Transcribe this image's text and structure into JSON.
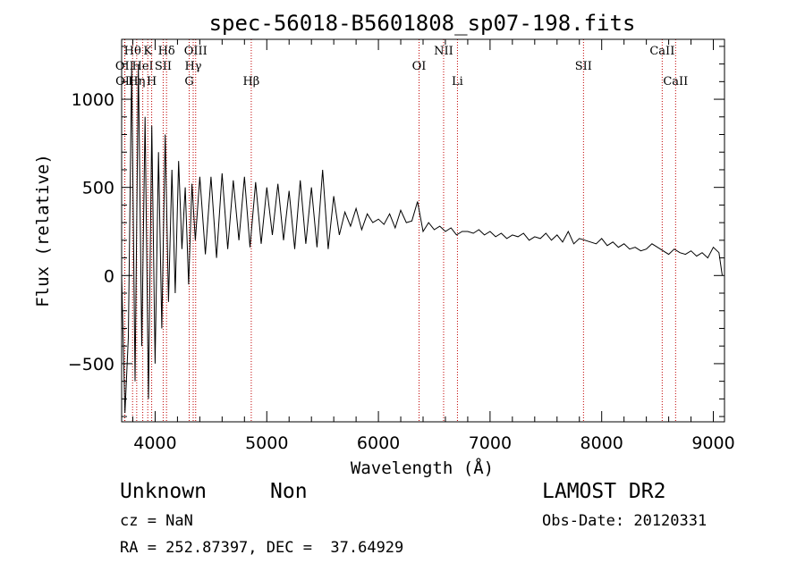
{
  "info": {
    "class": "Unknown",
    "subclass": "Non",
    "survey": "LAMOST DR2",
    "cz": "cz = NaN",
    "obs_date": "Obs-Date: 20120331",
    "coords": "RA = 252.87397, DEC =  37.64929"
  },
  "chart_data": {
    "type": "line",
    "title": "spec-56018-B5601808_sp07-198.fits",
    "xlabel": "Wavelength (Å)",
    "ylabel": "Flux (relative)",
    "xlim": [
      3700,
      9100
    ],
    "ylim": [
      -830,
      1340
    ],
    "xticks": [
      4000,
      5000,
      6000,
      7000,
      8000,
      9000
    ],
    "yticks": [
      -500,
      0,
      500,
      1000
    ],
    "grid": false,
    "line_color": "#000000",
    "marker_color": "#c00000",
    "spectral_lines": [
      {
        "label": "OII",
        "wavelength": 3727,
        "row": 2
      },
      {
        "label": "OII",
        "wavelength": 3729,
        "row": 3
      },
      {
        "label": "Hθ",
        "wavelength": 3798,
        "row": 1
      },
      {
        "label": "Hη",
        "wavelength": 3835,
        "row": 3
      },
      {
        "label": "HeI",
        "wavelength": 3889,
        "row": 2
      },
      {
        "label": "K",
        "wavelength": 3934,
        "row": 1
      },
      {
        "label": "H",
        "wavelength": 3969,
        "row": 3
      },
      {
        "label": "SII",
        "wavelength": 4072,
        "row": 2
      },
      {
        "label": "Hδ",
        "wavelength": 4102,
        "row": 1
      },
      {
        "label": "G",
        "wavelength": 4305,
        "row": 3
      },
      {
        "label": "Hγ",
        "wavelength": 4341,
        "row": 2
      },
      {
        "label": "OIII",
        "wavelength": 4363,
        "row": 1
      },
      {
        "label": "Hβ",
        "wavelength": 4861,
        "row": 3
      },
      {
        "label": "OI",
        "wavelength": 6364,
        "row": 2
      },
      {
        "label": "NII",
        "wavelength": 6584,
        "row": 1
      },
      {
        "label": "Li",
        "wavelength": 6708,
        "row": 3
      },
      {
        "label": "SII",
        "wavelength": 7837,
        "row": 2
      },
      {
        "label": "CaII",
        "wavelength": 8542,
        "row": 1
      },
      {
        "label": "CaII",
        "wavelength": 8662,
        "row": 3
      }
    ],
    "series": [
      {
        "x": [
          3700,
          3730,
          3760,
          3790,
          3820,
          3850,
          3880,
          3910,
          3940,
          3970,
          4000,
          4030,
          4060,
          4090,
          4120,
          4150,
          4180,
          4210,
          4240,
          4270,
          4300,
          4330,
          4360,
          4400,
          4450,
          4500,
          4550,
          4600,
          4650,
          4700,
          4750,
          4800,
          4850,
          4900,
          4950,
          5000,
          5050,
          5100,
          5150,
          5200,
          5250,
          5300,
          5350,
          5400,
          5450,
          5500,
          5550,
          5600,
          5650,
          5700,
          5750,
          5800,
          5850,
          5900,
          5950,
          6000,
          6050,
          6100,
          6150,
          6200,
          6250,
          6300,
          6350,
          6400,
          6450,
          6500,
          6550,
          6600,
          6650,
          6700,
          6750,
          6800,
          6850,
          6900,
          6950,
          7000,
          7050,
          7100,
          7150,
          7200,
          7250,
          7300,
          7350,
          7400,
          7450,
          7500,
          7550,
          7600,
          7650,
          7700,
          7750,
          7800,
          7850,
          7900,
          7950,
          8000,
          8050,
          8100,
          8150,
          8200,
          8250,
          8300,
          8350,
          8400,
          8450,
          8500,
          8550,
          8600,
          8650,
          8700,
          8750,
          8800,
          8850,
          8900,
          8950,
          9000,
          9050,
          9080
        ],
        "y": [
          0,
          -780,
          -350,
          1180,
          -600,
          1200,
          -400,
          900,
          -700,
          850,
          -500,
          700,
          -300,
          800,
          -150,
          600,
          -100,
          650,
          150,
          500,
          -50,
          520,
          200,
          560,
          120,
          560,
          100,
          580,
          150,
          540,
          200,
          560,
          160,
          530,
          180,
          500,
          230,
          520,
          200,
          480,
          150,
          540,
          180,
          500,
          160,
          600,
          150,
          450,
          230,
          360,
          280,
          380,
          260,
          350,
          300,
          320,
          290,
          350,
          270,
          370,
          300,
          310,
          420,
          250,
          300,
          260,
          280,
          250,
          270,
          230,
          250,
          250,
          240,
          260,
          230,
          250,
          220,
          240,
          210,
          230,
          220,
          240,
          200,
          220,
          210,
          240,
          200,
          230,
          190,
          250,
          180,
          210,
          200,
          190,
          180,
          210,
          170,
          190,
          160,
          180,
          150,
          160,
          140,
          150,
          180,
          160,
          140,
          120,
          150,
          130,
          120,
          140,
          110,
          130,
          100,
          160,
          130,
          0
        ]
      }
    ]
  }
}
